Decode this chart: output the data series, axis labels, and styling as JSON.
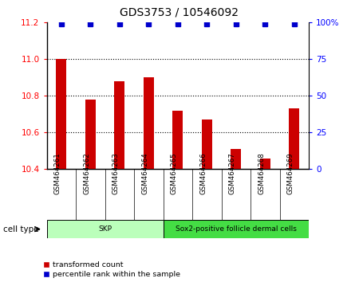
{
  "title": "GDS3753 / 10546092",
  "samples": [
    "GSM464261",
    "GSM464262",
    "GSM464263",
    "GSM464264",
    "GSM464265",
    "GSM464266",
    "GSM464267",
    "GSM464268",
    "GSM464269"
  ],
  "transformed_counts": [
    11.0,
    10.78,
    10.88,
    10.9,
    10.72,
    10.67,
    10.51,
    10.46,
    10.73
  ],
  "percentile_ranks": [
    99,
    99,
    99,
    99,
    99,
    99,
    99,
    99,
    99
  ],
  "bar_color": "#cc0000",
  "dot_color": "#0000cc",
  "ylim_left": [
    10.4,
    11.2
  ],
  "ylim_right": [
    0,
    100
  ],
  "yticks_left": [
    10.4,
    10.6,
    10.8,
    11.0,
    11.2
  ],
  "yticks_right": [
    0,
    25,
    50,
    75,
    100
  ],
  "ytick_labels_right": [
    "0",
    "25",
    "50",
    "75",
    "100%"
  ],
  "grid_lines": [
    10.6,
    10.8,
    11.0
  ],
  "cell_types": [
    {
      "label": "SKP",
      "start": 0,
      "end": 3,
      "color": "#bbffbb"
    },
    {
      "label": "Sox2-positive follicle dermal cells",
      "start": 4,
      "end": 8,
      "color": "#44dd44"
    }
  ],
  "legend_items": [
    {
      "label": "transformed count",
      "color": "#cc0000"
    },
    {
      "label": "percentile rank within the sample",
      "color": "#0000cc"
    }
  ],
  "cell_type_label": "cell type",
  "bar_bottom": 10.4,
  "x_bg_color": "#cccccc",
  "skp_count": 4,
  "total_samples": 9
}
